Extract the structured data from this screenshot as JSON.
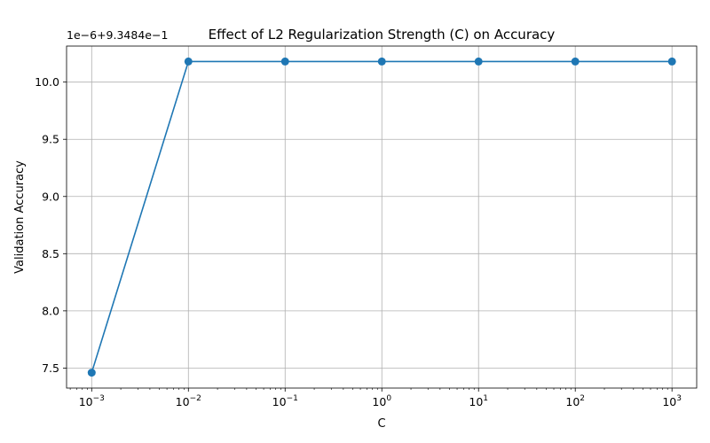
{
  "chart_data": {
    "type": "line",
    "title": "Effect of L2 Regularization Strength (C) on Accuracy",
    "xlabel": "C",
    "ylabel": "Validation Accuracy",
    "x_scale": "log",
    "x": [
      0.001,
      0.01,
      0.1,
      1,
      10,
      100,
      1000
    ],
    "x_tick_values": [
      0.001,
      0.01,
      0.1,
      1,
      10,
      100,
      1000
    ],
    "x_tick_labels": [
      {
        "base": "10",
        "exp": "−3"
      },
      {
        "base": "10",
        "exp": "−2"
      },
      {
        "base": "10",
        "exp": "−1"
      },
      {
        "base": "10",
        "exp": "0"
      },
      {
        "base": "10",
        "exp": "1"
      },
      {
        "base": "10",
        "exp": "2"
      },
      {
        "base": "10",
        "exp": "3"
      }
    ],
    "y_offset_text": "1e−6+9.3484e−1",
    "y_tick_values": [
      7.5,
      8.0,
      8.5,
      9.0,
      9.5,
      10.0
    ],
    "y_tick_labels": [
      "7.5",
      "8.0",
      "8.5",
      "9.0",
      "9.5",
      "10.0"
    ],
    "series": [
      {
        "values": [
          7.46,
          10.18,
          10.18,
          10.18,
          10.18,
          10.18,
          10.18
        ],
        "color": "#1f77b4"
      }
    ],
    "xlim": [
      0.00055,
      1800
    ],
    "ylim": [
      7.325,
      10.315
    ],
    "grid": true,
    "legend": "none"
  }
}
